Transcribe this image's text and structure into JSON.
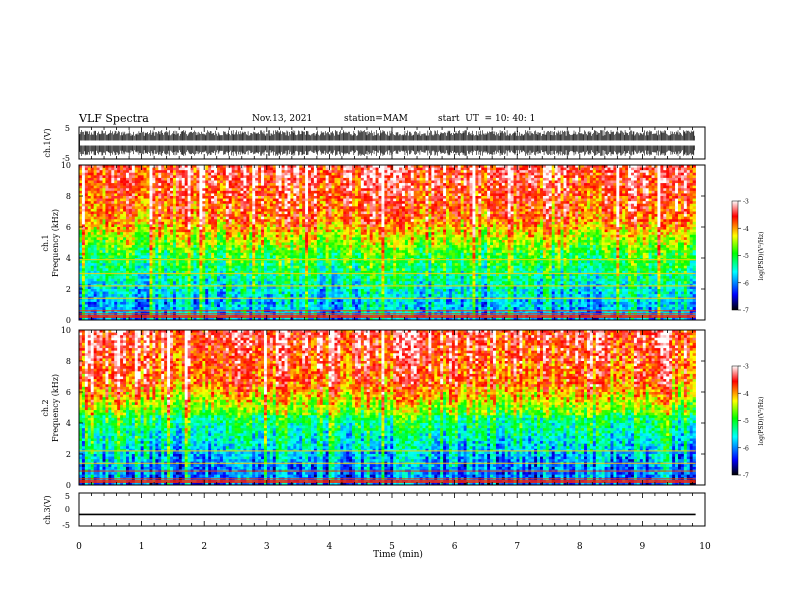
{
  "header": {
    "title": "VLF Spectra",
    "date": "Nov.13, 2021",
    "station": "station=MAM",
    "start_label": "start  UT  =",
    "start_time": "10: 40: 1"
  },
  "chart_data": [
    {
      "type": "line",
      "panel": "ch1-waveform",
      "ylabel": "ch.1(V)",
      "ylim": [
        -5,
        5
      ],
      "yticks": [
        "5",
        "-5"
      ],
      "xlim": [
        0,
        10
      ],
      "description_values": "dense noise-like waveform spanning approximately -4 to 4 V"
    },
    {
      "type": "heatmap",
      "panel": "ch1-spectrogram",
      "ylabel": "ch.1\nFrequency  (kHz)",
      "ylabel_line1": "ch.1",
      "ylabel_line2": "Frequency  (kHz)",
      "ylim": [
        0,
        10
      ],
      "yticks": [
        "0",
        "2",
        "4",
        "6",
        "8",
        "10"
      ],
      "xlim": [
        0,
        10
      ],
      "colorbar": {
        "label": "log(PSD)(V²/Hz)",
        "range": [
          -7,
          -3
        ],
        "ticks": [
          "-3",
          "-4",
          "-5",
          "-6",
          "-7"
        ]
      }
    },
    {
      "type": "heatmap",
      "panel": "ch2-spectrogram",
      "ylabel_line1": "ch.2",
      "ylabel_line2": "Frequency  (kHz)",
      "ylim": [
        0,
        10
      ],
      "yticks": [
        "0",
        "2",
        "4",
        "6",
        "8",
        "10"
      ],
      "xlim": [
        0,
        10
      ],
      "colorbar": {
        "label": "log(PSD)(V²/Hz)",
        "range": [
          -7,
          -3
        ],
        "ticks": [
          "-3",
          "-4",
          "-5",
          "-6",
          "-7"
        ]
      }
    },
    {
      "type": "line",
      "panel": "ch3-waveform",
      "ylabel": "ch.3(V)",
      "ylim": [
        -5,
        5
      ],
      "yticks": [
        "5",
        "0",
        "-5"
      ],
      "xlim": [
        0,
        10
      ],
      "x": [
        0,
        9.85
      ],
      "y": [
        -1.5,
        -1.5
      ]
    }
  ],
  "xaxis": {
    "label": "Time  (min)",
    "ticks": [
      "0",
      "1",
      "2",
      "3",
      "4",
      "5",
      "6",
      "7",
      "8",
      "9",
      "10"
    ]
  },
  "colors": {
    "colormap": [
      "#000000",
      "#0000ff",
      "#00ffff",
      "#00ff00",
      "#ffff00",
      "#ff0000",
      "#ffffff"
    ]
  }
}
